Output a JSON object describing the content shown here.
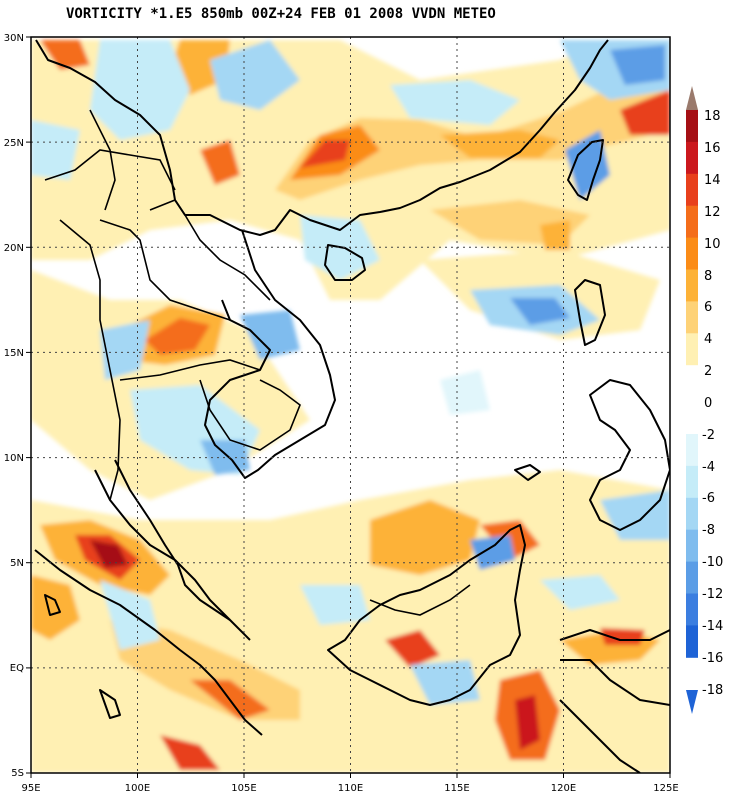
{
  "title": "VORTICITY *1.E5 850mb 00Z+24 FEB 01 2008 VVDN METEO",
  "map": {
    "lon_ticks": [
      "95E",
      "100E",
      "105E",
      "110E",
      "115E",
      "120E",
      "125E"
    ],
    "lat_ticks": [
      "30N",
      "25N",
      "20N",
      "15N",
      "10N",
      "5N",
      "EQ",
      "5S"
    ],
    "lon_range": [
      95,
      125
    ],
    "lat_range": [
      -5,
      30
    ],
    "grid": "dotted"
  },
  "colorbar": {
    "positive_labels": [
      "18",
      "16",
      "14",
      "12",
      "10",
      "8",
      "6",
      "4",
      "2",
      "0"
    ],
    "negative_labels": [
      "-2",
      "-4",
      "-6",
      "-8",
      "-10",
      "-12",
      "-14",
      "-16",
      "-18"
    ],
    "positive_colors": [
      "#a50f15",
      "#cb181d",
      "#e8401c",
      "#f46d1a",
      "#fb8c17",
      "#fdb237",
      "#fed277",
      "#fff0b3"
    ],
    "negative_colors": [
      "#e1f6fb",
      "#c5ecf8",
      "#a4d7f4",
      "#7fbcee",
      "#5b9de6",
      "#3b7ee0",
      "#1e63d6"
    ],
    "top_arrow_color": "#9a7a6c",
    "bottom_arrow_color": "#1e63d6"
  }
}
